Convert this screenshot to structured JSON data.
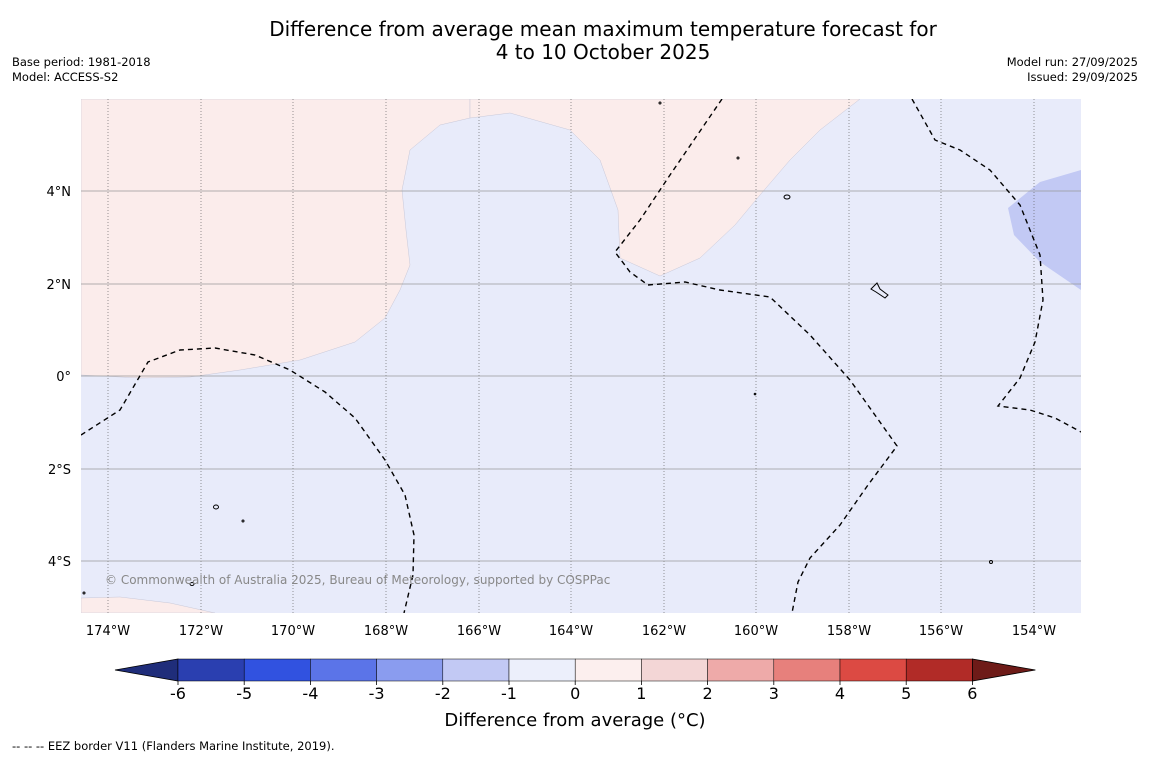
{
  "header": {
    "title": "Difference from average mean maximum temperature forecast for\n4 to 10 October 2025",
    "base_period": "Base period: 1981-2018",
    "model": "Model: ACCESS-S2",
    "model_run": "Model run: 27/09/2025",
    "issued": "Issued: 29/09/2025"
  },
  "map": {
    "lon_labels": [
      "174°W",
      "172°W",
      "170°W",
      "168°W",
      "166°W",
      "164°W",
      "162°W",
      "160°W",
      "158°W",
      "156°W",
      "154°W"
    ],
    "lat_labels": [
      "4°N",
      "2°N",
      "0°",
      "2°S",
      "4°S"
    ],
    "copyright": "© Commonwealth of Australia 2025, Bureau of Meteorology, supported by COSPPac",
    "colors": {
      "ocean_slightly_cool": "#e8ebfa",
      "slightly_warm": "#fbeceb",
      "cool_1_2": "#c2c9f4"
    }
  },
  "colorbar": {
    "label": "Difference from average (°C)",
    "ticks": [
      "-6",
      "-5",
      "-4",
      "-3",
      "-2",
      "-1",
      "0",
      "1",
      "2",
      "3",
      "4",
      "5",
      "6"
    ],
    "colors": [
      "#1f2d7a",
      "#2a3fb0",
      "#3152e0",
      "#5b74e8",
      "#8a9cef",
      "#c2c9f4",
      "#eceffb",
      "#fcefee",
      "#f3d6d6",
      "#eeaaa9",
      "#e7807c",
      "#dc4a43",
      "#b12b27",
      "#6e1b18"
    ]
  },
  "footer": {
    "eez_note": "--  --  -- EEZ border V11 (Flanders Marine Institute, 2019)."
  }
}
